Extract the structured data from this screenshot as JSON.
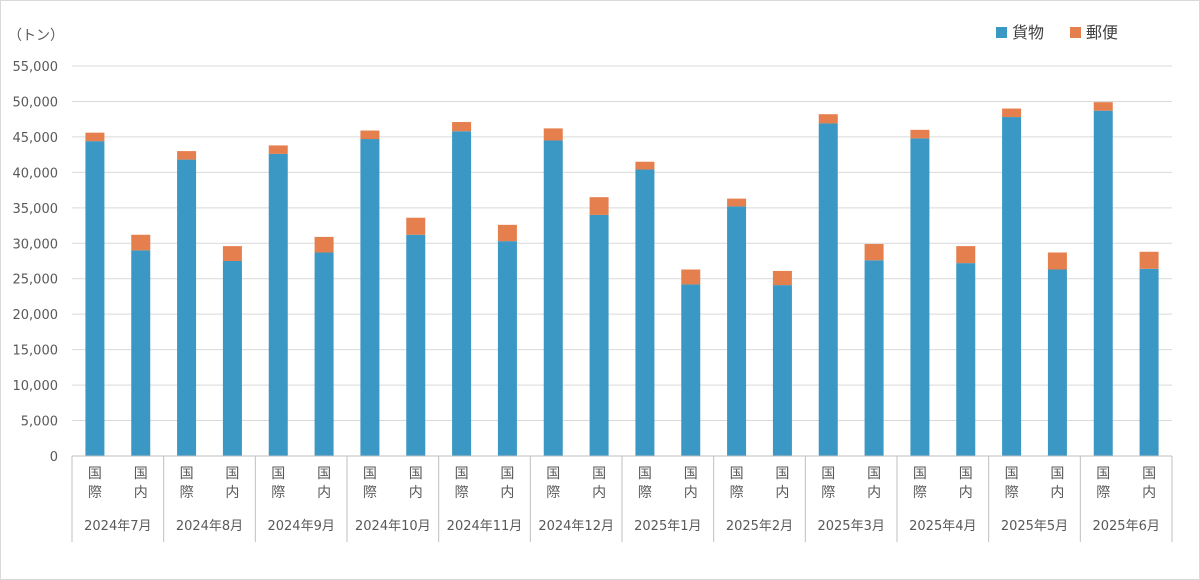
{
  "chart_data": {
    "type": "bar",
    "stacked": true,
    "unit_label": "（トン）",
    "ylim": [
      0,
      55000
    ],
    "yticks": [
      "0",
      "5,000",
      "10,000",
      "15,000",
      "20,000",
      "25,000",
      "30,000",
      "35,000",
      "40,000",
      "45,000",
      "50,000",
      "55,000"
    ],
    "ytick_values": [
      0,
      5000,
      10000,
      15000,
      20000,
      25000,
      30000,
      35000,
      40000,
      45000,
      50000,
      55000
    ],
    "grid": true,
    "legend_position": "top-right",
    "groups": [
      "2024年7月",
      "2024年8月",
      "2024年9月",
      "2024年10月",
      "2024年11月",
      "2024年12月",
      "2025年1月",
      "2025年2月",
      "2025年3月",
      "2025年4月",
      "2025年5月",
      "2025年6月"
    ],
    "subcategories": [
      {
        "top": "国",
        "bottom": "際"
      },
      {
        "top": "国",
        "bottom": "内"
      }
    ],
    "series": [
      {
        "name": "貨物",
        "color": "#3B97C3",
        "values": [
          [
            44400,
            29000
          ],
          [
            41800,
            27500
          ],
          [
            42600,
            28700
          ],
          [
            44700,
            31200
          ],
          [
            45800,
            30300
          ],
          [
            44500,
            34000
          ],
          [
            40400,
            24200
          ],
          [
            35200,
            24100
          ],
          [
            46900,
            27600
          ],
          [
            44800,
            27200
          ],
          [
            47800,
            26300
          ],
          [
            48700,
            26400
          ]
        ]
      },
      {
        "name": "郵便",
        "color": "#E67F4E",
        "values": [
          [
            1200,
            2200
          ],
          [
            1200,
            2100
          ],
          [
            1200,
            2200
          ],
          [
            1200,
            2400
          ],
          [
            1300,
            2300
          ],
          [
            1700,
            2500
          ],
          [
            1100,
            2100
          ],
          [
            1100,
            2000
          ],
          [
            1300,
            2300
          ],
          [
            1200,
            2400
          ],
          [
            1200,
            2400
          ],
          [
            1200,
            2400
          ]
        ]
      }
    ]
  }
}
